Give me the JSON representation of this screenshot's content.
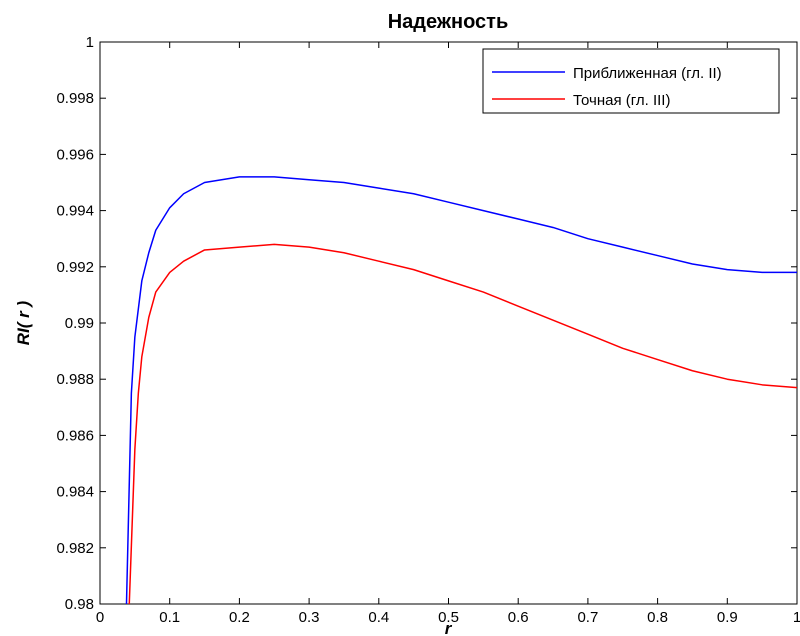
{
  "chart_data": {
    "type": "line",
    "title": "Надежность",
    "xlabel": "r",
    "ylabel": "RI( r )",
    "xlim": [
      0,
      1
    ],
    "ylim": [
      0.98,
      1
    ],
    "grid": false,
    "legend_position": "top-right",
    "x_ticks": [
      0,
      0.1,
      0.2,
      0.3,
      0.4,
      0.5,
      0.6,
      0.7,
      0.8,
      0.9,
      1
    ],
    "x_tick_labels": [
      "0",
      "0.1",
      "0.2",
      "0.3",
      "0.4",
      "0.5",
      "0.6",
      "0.7",
      "0.8",
      "0.9",
      "1"
    ],
    "y_ticks": [
      0.98,
      0.982,
      0.984,
      0.986,
      0.988,
      0.99,
      0.992,
      0.994,
      0.996,
      0.998,
      1
    ],
    "y_tick_labels": [
      "0.98",
      "0.982",
      "0.984",
      "0.986",
      "0.988",
      "0.99",
      "0.992",
      "0.994",
      "0.996",
      "0.998",
      "1"
    ],
    "series": [
      {
        "name": "Приближенная (гл. II)",
        "color": "#0000ff",
        "x": [
          0.038,
          0.045,
          0.05,
          0.06,
          0.07,
          0.08,
          0.1,
          0.12,
          0.15,
          0.2,
          0.25,
          0.3,
          0.35,
          0.4,
          0.45,
          0.5,
          0.55,
          0.6,
          0.65,
          0.7,
          0.75,
          0.8,
          0.85,
          0.9,
          0.95,
          1.0
        ],
        "y": [
          0.98,
          0.9875,
          0.9895,
          0.9915,
          0.9925,
          0.9933,
          0.9941,
          0.9946,
          0.995,
          0.9952,
          0.9952,
          0.9951,
          0.995,
          0.9948,
          0.9946,
          0.9943,
          0.994,
          0.9937,
          0.9934,
          0.993,
          0.9927,
          0.9924,
          0.9921,
          0.9919,
          0.9918,
          0.9918
        ]
      },
      {
        "name": "Точная (гл. III)",
        "color": "#ff0000",
        "x": [
          0.042,
          0.05,
          0.055,
          0.06,
          0.07,
          0.08,
          0.1,
          0.12,
          0.15,
          0.2,
          0.25,
          0.3,
          0.35,
          0.4,
          0.45,
          0.5,
          0.55,
          0.6,
          0.65,
          0.7,
          0.75,
          0.8,
          0.85,
          0.9,
          0.95,
          1.0
        ],
        "y": [
          0.98,
          0.9855,
          0.9875,
          0.9888,
          0.9902,
          0.9911,
          0.9918,
          0.9922,
          0.9926,
          0.9927,
          0.9928,
          0.9927,
          0.9925,
          0.9922,
          0.9919,
          0.9915,
          0.9911,
          0.9906,
          0.9901,
          0.9896,
          0.9891,
          0.9887,
          0.9883,
          0.988,
          0.9878,
          0.9877
        ]
      }
    ]
  }
}
